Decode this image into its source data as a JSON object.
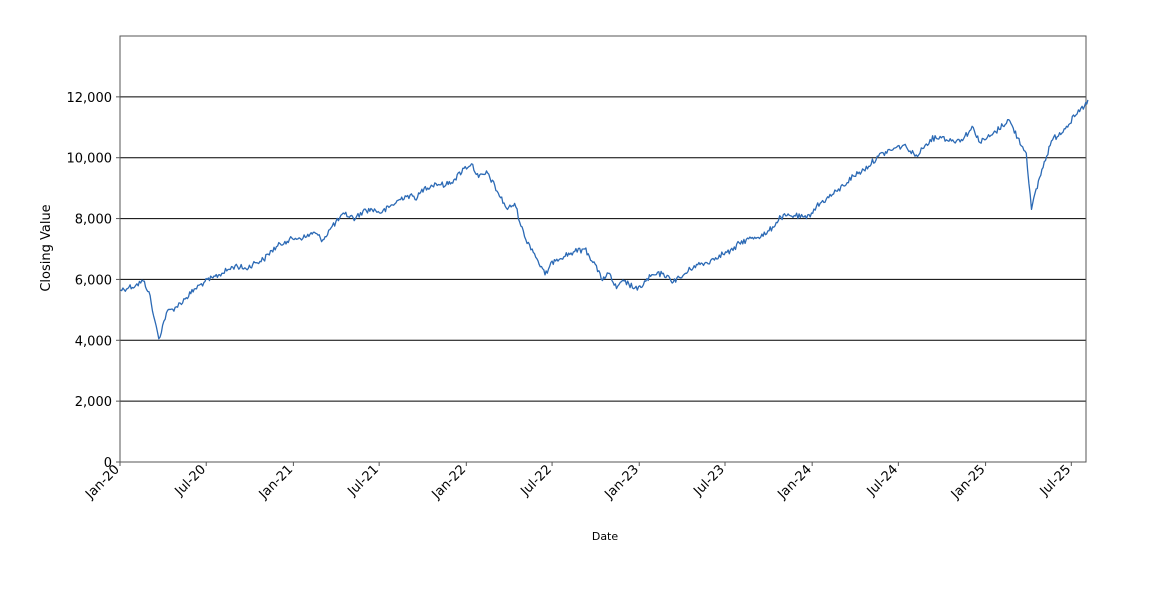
{
  "chart_data": {
    "type": "line",
    "title": "",
    "xlabel": "Date",
    "ylabel": "Closing Value",
    "ylim": [
      0,
      14000
    ],
    "xlim": [
      "2020-01",
      "2025-08"
    ],
    "grid": "horizontal",
    "yticks": [
      0,
      2000,
      4000,
      6000,
      8000,
      10000,
      12000
    ],
    "ytick_labels": [
      "0",
      "2,000",
      "4,000",
      "6,000",
      "8,000",
      "10,000",
      "12,000"
    ],
    "xticks": [
      "2020-01",
      "2020-07",
      "2021-01",
      "2021-07",
      "2022-01",
      "2022-07",
      "2023-01",
      "2023-07",
      "2024-01",
      "2024-07",
      "2025-01",
      "2025-07"
    ],
    "xtick_labels": [
      "Jan-20",
      "Jul-20",
      "Jan-21",
      "Jul-21",
      "Jan-22",
      "Jul-22",
      "Jan-23",
      "Jul-23",
      "Jan-24",
      "Jul-24",
      "Jan-25",
      "Jul-25"
    ],
    "line_color": "#2c6ab5",
    "series": [
      {
        "x": [
          "2020-01-02",
          "2020-01-20",
          "2020-02-03",
          "2020-02-19",
          "2020-03-02",
          "2020-03-12",
          "2020-03-23",
          "2020-04-08",
          "2020-04-29",
          "2020-05-20",
          "2020-06-08",
          "2020-06-26",
          "2020-07-15",
          "2020-08-03",
          "2020-08-31",
          "2020-09-23",
          "2020-10-12",
          "2020-10-30",
          "2020-11-16",
          "2020-12-14",
          "2021-01-05",
          "2021-01-29",
          "2021-02-12",
          "2021-03-04",
          "2021-03-24",
          "2021-04-19",
          "2021-05-12",
          "2021-05-28",
          "2021-06-16",
          "2021-07-07",
          "2021-07-29",
          "2021-08-25",
          "2021-09-20",
          "2021-10-04",
          "2021-10-29",
          "2021-11-19",
          "2021-12-08",
          "2021-12-27",
          "2022-01-12",
          "2022-01-27",
          "2022-02-15",
          "2022-03-07",
          "2022-03-29",
          "2022-04-13",
          "2022-05-04",
          "2022-05-20",
          "2022-06-16",
          "2022-07-06",
          "2022-08-15",
          "2022-09-08",
          "2022-09-30",
          "2022-10-13",
          "2022-10-28",
          "2022-11-14",
          "2022-11-30",
          "2022-12-28",
          "2023-01-25",
          "2023-02-21",
          "2023-03-09",
          "2023-03-29",
          "2023-04-27",
          "2023-05-24",
          "2023-06-19",
          "2023-07-18",
          "2023-07-31",
          "2023-08-25",
          "2023-09-27",
          "2023-10-27",
          "2023-11-24",
          "2023-12-20",
          "2024-01-10",
          "2024-01-31",
          "2024-02-23",
          "2024-03-28",
          "2024-04-19",
          "2024-05-20",
          "2024-06-14",
          "2024-07-10",
          "2024-07-18",
          "2024-08-05",
          "2024-08-21",
          "2024-09-06",
          "2024-09-27",
          "2024-10-21",
          "2024-11-11",
          "2024-12-06",
          "2024-12-20",
          "2025-01-15",
          "2025-02-19",
          "2025-03-10",
          "2025-03-28",
          "2025-04-08",
          "2025-04-25",
          "2025-05-20",
          "2025-06-16",
          "2025-07-08",
          "2025-07-29",
          "2025-08-05"
        ],
        "values": [
          5650,
          5750,
          5800,
          5950,
          5600,
          4800,
          4050,
          4900,
          5100,
          5400,
          5700,
          5900,
          6050,
          6200,
          6450,
          6350,
          6550,
          6650,
          6950,
          7250,
          7350,
          7400,
          7550,
          7300,
          7750,
          8150,
          8000,
          8250,
          8300,
          8200,
          8450,
          8750,
          8700,
          9000,
          9150,
          9100,
          9300,
          9650,
          9800,
          9350,
          9500,
          8900,
          8300,
          8500,
          7400,
          7000,
          6150,
          6650,
          6900,
          7000,
          6500,
          6000,
          6200,
          5700,
          5950,
          5650,
          6100,
          6200,
          5950,
          6050,
          6450,
          6550,
          6800,
          6950,
          7200,
          7350,
          7500,
          8050,
          8100,
          8000,
          8400,
          8650,
          8900,
          9400,
          9600,
          10050,
          10250,
          10400,
          10350,
          10050,
          10300,
          10600,
          10700,
          10550,
          10600,
          11000,
          10500,
          10750,
          11250,
          10650,
          10150,
          8300,
          9350,
          10550,
          10950,
          11350,
          11700,
          11900
        ]
      }
    ]
  }
}
